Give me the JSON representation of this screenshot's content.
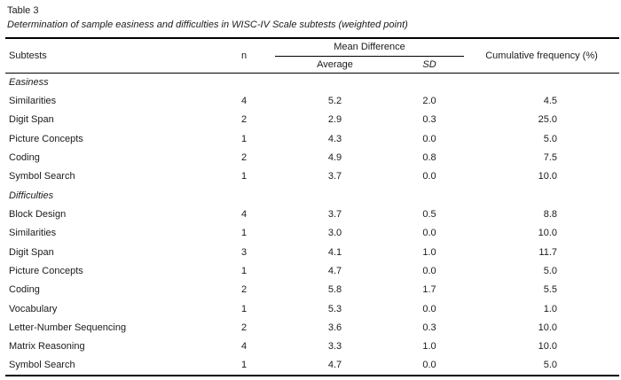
{
  "title": "Table 3",
  "caption": "Determination of sample easiness and difficulties in WISC-IV Scale subtests (weighted point)",
  "header": {
    "subtests": "Subtests",
    "n": "n",
    "mean_difference": "Mean Difference",
    "average": "Average",
    "sd": "SD",
    "cumulative": "Cumulative frequency (%)"
  },
  "sections": [
    {
      "label": "Easiness",
      "rows": [
        {
          "name": "Similarities",
          "n": "4",
          "average": "5.2",
          "sd": "2.0",
          "cumulative": "4.5"
        },
        {
          "name": "Digit Span",
          "n": "2",
          "average": "2.9",
          "sd": "0.3",
          "cumulative": "25.0"
        },
        {
          "name": "Picture Concepts",
          "n": "1",
          "average": "4.3",
          "sd": "0.0",
          "cumulative": "5.0"
        },
        {
          "name": "Coding",
          "n": "2",
          "average": "4.9",
          "sd": "0.8",
          "cumulative": "7.5"
        },
        {
          "name": "Symbol Search",
          "n": "1",
          "average": "3.7",
          "sd": "0.0",
          "cumulative": "10.0"
        }
      ]
    },
    {
      "label": "Difficulties",
      "rows": [
        {
          "name": "Block Design",
          "n": "4",
          "average": "3.7",
          "sd": "0.5",
          "cumulative": "8.8"
        },
        {
          "name": "Similarities",
          "n": "1",
          "average": "3.0",
          "sd": "0.0",
          "cumulative": "10.0"
        },
        {
          "name": "Digit Span",
          "n": "3",
          "average": "4.1",
          "sd": "1.0",
          "cumulative": "11.7"
        },
        {
          "name": "Picture Concepts",
          "n": "1",
          "average": "4.7",
          "sd": "0.0",
          "cumulative": "5.0"
        },
        {
          "name": "Coding",
          "n": "2",
          "average": "5.8",
          "sd": "1.7",
          "cumulative": "5.5"
        },
        {
          "name": "Vocabulary",
          "n": "1",
          "average": "5.3",
          "sd": "0.0",
          "cumulative": "1.0"
        },
        {
          "name": "Letter-Number Sequencing",
          "n": "2",
          "average": "3.6",
          "sd": "0.3",
          "cumulative": "10.0"
        },
        {
          "name": "Matrix Reasoning",
          "n": "4",
          "average": "3.3",
          "sd": "1.0",
          "cumulative": "10.0"
        },
        {
          "name": "Symbol Search",
          "n": "1",
          "average": "4.7",
          "sd": "0.0",
          "cumulative": "5.0"
        }
      ]
    }
  ]
}
